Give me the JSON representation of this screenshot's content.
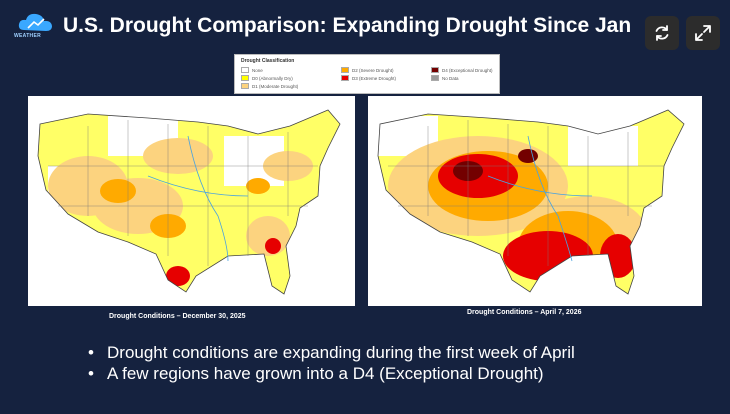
{
  "title": "U.S. Drought Comparison:  Expanding Drought Since Jan",
  "logo": {
    "icon": "cloud-logo",
    "text": "WEATHER"
  },
  "controls": {
    "refresh_icon": "refresh-icon",
    "expand_icon": "expand-icon"
  },
  "legend": {
    "title": "Drought Classification",
    "items": [
      {
        "label": "None",
        "color": "#ffffff"
      },
      {
        "label": "D0 (Abnormally Dry)",
        "color": "#ffff00"
      },
      {
        "label": "D1 (Moderate Drought)",
        "color": "#fcd37f"
      },
      {
        "label": "D2 (Severe Drought)",
        "color": "#ffaa00"
      },
      {
        "label": "D3 (Extreme Drought)",
        "color": "#e60000"
      },
      {
        "label": "D4 (Exceptional Drought)",
        "color": "#730000"
      },
      {
        "label": "No Data",
        "color": "#9b9b9b"
      }
    ]
  },
  "maps": {
    "left": {
      "caption": "Drought Conditions – December 30, 2025"
    },
    "right": {
      "caption": "Drought Conditions – April 7, 2026"
    }
  },
  "bullets": [
    "Drought conditions are expanding during the first week of April",
    "A few regions have grown into a D4 (Exceptional Drought)"
  ]
}
